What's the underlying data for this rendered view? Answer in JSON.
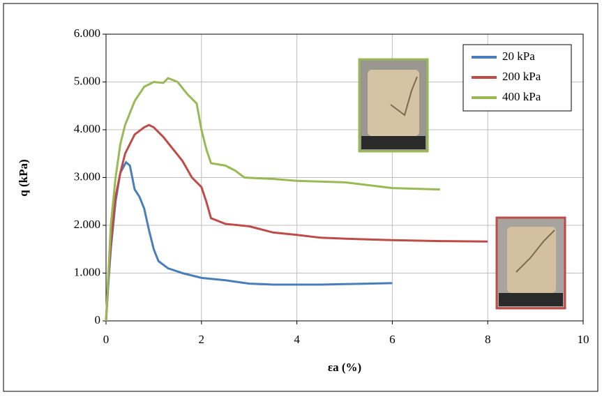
{
  "chart_data": {
    "type": "line",
    "x_label": "εa (%)",
    "y_label": "q (kPa)",
    "xlim": [
      0,
      10
    ],
    "xticks": [
      0,
      2,
      4,
      6,
      8,
      10
    ],
    "ylim": [
      0,
      6000
    ],
    "yticks": [
      0,
      {
        "value": 1000,
        "label": "1.000"
      },
      {
        "value": 2000,
        "label": "2.000"
      },
      {
        "value": 3000,
        "label": "3.000"
      },
      {
        "value": 4000,
        "label": "4.000"
      },
      {
        "value": 5000,
        "label": "5.000"
      },
      {
        "value": 6000,
        "label": "6.000"
      }
    ],
    "grid": true,
    "legend": "upper right",
    "series": [
      {
        "name": "20 kPa",
        "color": "#4a7ebb",
        "x": [
          0,
          0.05,
          0.1,
          0.2,
          0.3,
          0.42,
          0.5,
          0.6,
          0.7,
          0.8,
          0.9,
          1.0,
          1.1,
          1.3,
          1.6,
          2,
          2.5,
          3,
          3.5,
          4,
          4.5,
          5,
          5.5,
          6
        ],
        "values": [
          0,
          800,
          1500,
          2500,
          3100,
          3320,
          3250,
          2750,
          2600,
          2350,
          1900,
          1500,
          1250,
          1100,
          1000,
          900,
          850,
          780,
          760,
          760,
          760,
          770,
          780,
          790
        ]
      },
      {
        "name": "200 kPa",
        "color": "#be4b48",
        "x": [
          0,
          0.05,
          0.1,
          0.2,
          0.3,
          0.4,
          0.6,
          0.8,
          0.9,
          1.0,
          1.2,
          1.4,
          1.6,
          1.8,
          2.0,
          2.1,
          2.2,
          2.5,
          3,
          3.5,
          4,
          4.5,
          5,
          6,
          7,
          8
        ],
        "values": [
          0,
          900,
          1600,
          2600,
          3100,
          3500,
          3900,
          4050,
          4100,
          4050,
          3850,
          3600,
          3350,
          3000,
          2800,
          2500,
          2150,
          2030,
          1980,
          1850,
          1800,
          1740,
          1720,
          1690,
          1670,
          1660
        ]
      },
      {
        "name": "400 kPa",
        "color": "#98b954",
        "x": [
          0,
          0.05,
          0.1,
          0.2,
          0.3,
          0.4,
          0.6,
          0.8,
          1.0,
          1.2,
          1.3,
          1.5,
          1.7,
          1.9,
          2.0,
          2.1,
          2.2,
          2.5,
          2.7,
          2.9,
          3.5,
          4,
          5,
          6,
          7
        ],
        "values": [
          0,
          1000,
          2000,
          3000,
          3700,
          4100,
          4600,
          4900,
          5000,
          4980,
          5080,
          5000,
          4750,
          4550,
          4000,
          3600,
          3300,
          3250,
          3150,
          3000,
          2970,
          2930,
          2900,
          2780,
          2750
        ]
      }
    ]
  }
}
